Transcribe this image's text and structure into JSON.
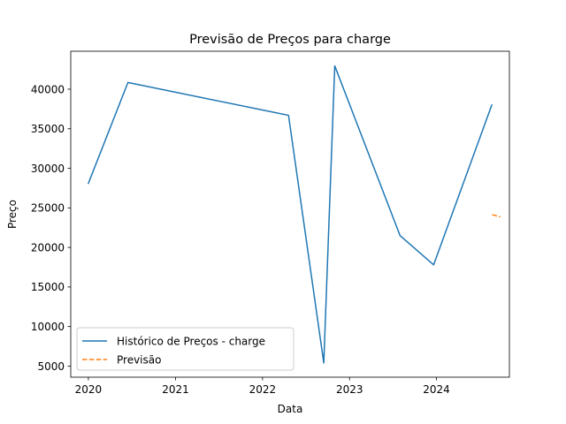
{
  "chart_data": {
    "type": "line",
    "title": "Previsão de Preços para charge",
    "xlabel": "Data",
    "ylabel": "Preço",
    "x_ticks": [
      "2020",
      "2021",
      "2022",
      "2023",
      "2024"
    ],
    "y_ticks": [
      5000,
      10000,
      15000,
      20000,
      25000,
      30000,
      35000,
      40000
    ],
    "xlim": [
      "2019-10-19",
      "2024-11-02"
    ],
    "ylim": [
      3600,
      44800
    ],
    "grid": false,
    "legend_position": "lower-left",
    "series": [
      {
        "name": "Histórico de Preços - charge",
        "color": "#1f77b4",
        "style": "solid",
        "points": [
          {
            "x": "2020-01-01",
            "y": 28100
          },
          {
            "x": "2020-06-15",
            "y": 40850
          },
          {
            "x": "2022-04-20",
            "y": 36700
          },
          {
            "x": "2022-09-15",
            "y": 5400
          },
          {
            "x": "2022-10-31",
            "y": 42950
          },
          {
            "x": "2023-08-01",
            "y": 21500
          },
          {
            "x": "2023-12-20",
            "y": 17800
          },
          {
            "x": "2024-08-20",
            "y": 38000
          }
        ]
      },
      {
        "name": "Previsão",
        "color": "#ff7f0e",
        "style": "dashed",
        "points": [
          {
            "x": "2024-08-22",
            "y": 24150
          },
          {
            "x": "2024-09-25",
            "y": 23850
          }
        ]
      }
    ]
  }
}
